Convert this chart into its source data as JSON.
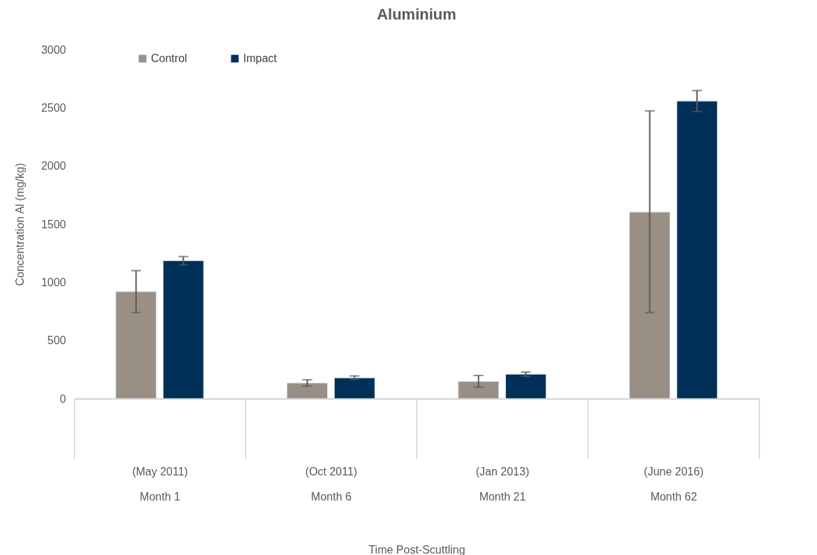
{
  "chart_data": {
    "type": "bar",
    "title": "Aluminium",
    "xlabel": "Time Post-Scuttling",
    "ylabel": "Concentration Al (mg/kg)",
    "categories": [
      "(May 2011)\nMonth 1",
      "(Oct 2011)\nMonth 6",
      "(Jan 2013)\nMonth 21",
      "(June 2016)\nMonth 62"
    ],
    "series": [
      {
        "name": "Control",
        "color": "#998f85",
        "values": [
          919,
          134,
          148,
          1603
        ],
        "errors": [
          [
            740,
            1100
          ],
          [
            107,
            162
          ],
          [
            98,
            199
          ],
          [
            740,
            2473
          ]
        ]
      },
      {
        "name": "Impact",
        "color": "#003057",
        "values": [
          1186,
          179,
          210,
          2557
        ],
        "errors": [
          [
            1149,
            1221
          ],
          [
            164,
            195
          ],
          [
            191,
            228
          ],
          [
            2467,
            2648
          ]
        ]
      }
    ],
    "ylim": [
      0,
      3000
    ],
    "yticks": [
      0,
      500,
      1000,
      1500,
      2000,
      2500,
      3000
    ],
    "grid": false,
    "legend": "top left"
  }
}
